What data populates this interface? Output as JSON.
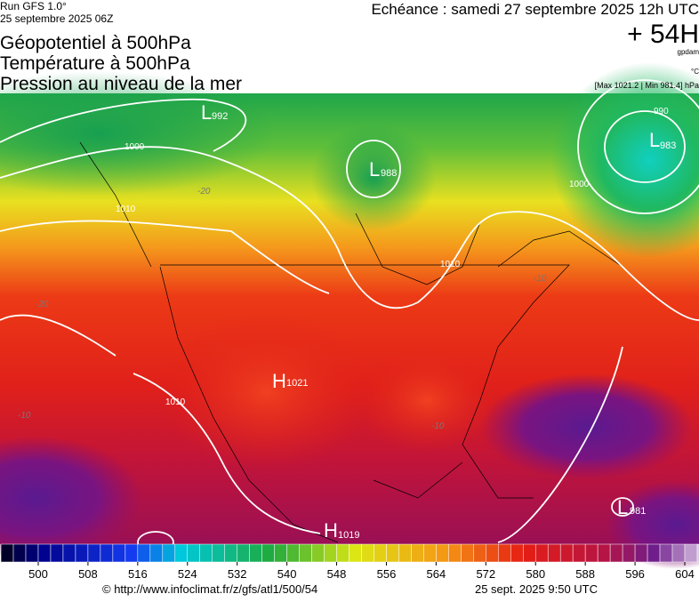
{
  "header": {
    "run": "Run GFS 1.0°",
    "run_date": "25 septembre 2025 06Z",
    "fields": [
      "Géopotentiel à 500hPa",
      "Température à 500hPa",
      "Pression au niveau de la mer"
    ],
    "valid": "Echéance : samedi 27 septembre 2025 12h UTC",
    "lead": "+ 54H",
    "unit_geo": "gpdam",
    "unit_temp": "°C",
    "range": "[Max 1021.2 | Min 981.4] hPa"
  },
  "map": {
    "centers": [
      {
        "type": "L",
        "value": "992"
      },
      {
        "type": "L",
        "value": "988"
      },
      {
        "type": "L",
        "value": "983"
      },
      {
        "type": "H",
        "value": "1021"
      },
      {
        "type": "H",
        "value": "1019"
      },
      {
        "type": "L",
        "value": "981"
      }
    ],
    "isobars": [
      "1000",
      "1010",
      "990"
    ],
    "temps": [
      "-20",
      "-10"
    ]
  },
  "colorbar": {
    "ticks": [
      500,
      508,
      516,
      524,
      532,
      540,
      548,
      556,
      564,
      572,
      580,
      588,
      596,
      604
    ]
  },
  "footer": {
    "url": "© http://www.infoclimat.fr/z/gfs/atl1/500/54",
    "date": "25 sept. 2025  9:50 UTC"
  }
}
